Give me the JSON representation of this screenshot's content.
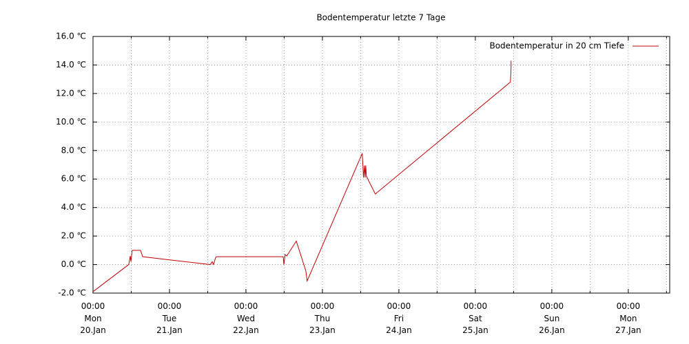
{
  "chart_data": {
    "type": "line",
    "title": "Bodentemperatur letzte 7 Tage",
    "x": [
      0,
      11.2,
      11.7,
      11.9,
      12.3,
      14.9,
      15.6,
      36.8,
      37.4,
      37.8,
      38.5,
      38.7,
      59.7,
      59.9,
      60.3,
      60.8,
      63.8,
      66.8,
      67.2,
      84.5,
      84.9,
      85.2,
      85.4,
      85.6,
      85.8,
      88.6,
      131.0,
      131.2,
      131.2
    ],
    "series": [
      {
        "name": "Bodentemperatur in 20 cm Tiefe",
        "color": "#c00000",
        "values": [
          -1.9,
          0.0,
          0.6,
          0.2,
          1.0,
          1.0,
          0.55,
          0.0,
          0.2,
          0.0,
          0.5,
          0.55,
          0.55,
          0.0,
          0.7,
          0.6,
          1.65,
          -0.45,
          -1.15,
          7.8,
          6.1,
          6.95,
          6.1,
          6.95,
          6.2,
          4.95,
          12.8,
          13.7,
          14.3
        ]
      }
    ],
    "xlim": [
      0,
      181
    ],
    "xticks": [
      {
        "value": 0,
        "label": "00:00\nMon\n20.Jan"
      },
      {
        "value": 24,
        "label": "00:00\nTue\n21.Jan"
      },
      {
        "value": 48,
        "label": "00:00\nWed\n22.Jan"
      },
      {
        "value": 72,
        "label": "00:00\nThu\n23.Jan"
      },
      {
        "value": 96,
        "label": "00:00\nFri\n24.Jan"
      },
      {
        "value": 120,
        "label": "00:00\nSat\n25.Jan"
      },
      {
        "value": 144,
        "label": "00:00\nSun\n26.Jan"
      },
      {
        "value": 168,
        "label": "00:00\nMon\n27.Jan"
      }
    ],
    "xminorticks": [
      12,
      36,
      60,
      84,
      108,
      132,
      156,
      180
    ],
    "ylim": [
      -2,
      16
    ],
    "yticks": [
      {
        "value": -2,
        "label": "-2.0 ℃"
      },
      {
        "value": 0,
        "label": "0.0 ℃"
      },
      {
        "value": 2,
        "label": "2.0 ℃"
      },
      {
        "value": 4,
        "label": "4.0 ℃"
      },
      {
        "value": 6,
        "label": "6.0 ℃"
      },
      {
        "value": 8,
        "label": "8.0 ℃"
      },
      {
        "value": 10,
        "label": "10.0 ℃"
      },
      {
        "value": 12,
        "label": "12.0 ℃"
      },
      {
        "value": 14,
        "label": "14.0 ℃"
      },
      {
        "value": 16,
        "label": "16.0 ℃"
      }
    ],
    "grid": true,
    "legend": "top-right"
  }
}
